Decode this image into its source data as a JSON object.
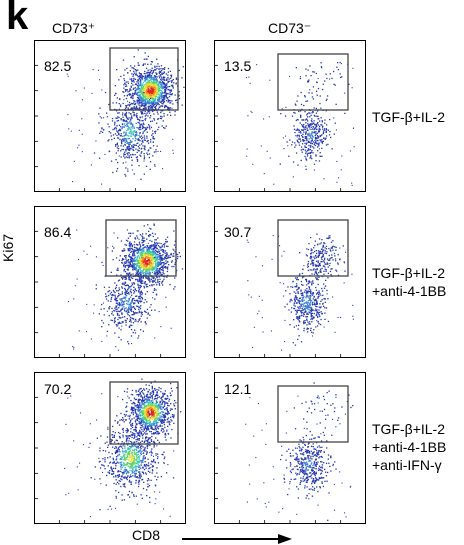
{
  "panel_letter": "k",
  "columns": [
    "CD73⁺",
    "CD73⁻"
  ],
  "y_axis_label": "Ki67",
  "x_axis_label": "CD8",
  "conditions": [
    [
      "TGF-β+IL-2"
    ],
    [
      "TGF-β+IL-2",
      "+anti-4-1BB"
    ],
    [
      "TGF-β+IL-2",
      "+anti-4-1BB",
      "+anti-IFN-γ"
    ]
  ],
  "colors": {
    "density_low": "#1a2fa8",
    "density_mid": "#2fbf6a",
    "density_high": "#e3241b",
    "gate": "#444444"
  },
  "chart_data": {
    "type": "scatter",
    "subtype": "flow-cytometry-density",
    "x_label": "CD8",
    "y_label": "Ki67",
    "columns": [
      "CD73⁺",
      "CD73⁻"
    ],
    "rows": [
      "TGF-β+IL-2",
      "TGF-β+IL-2 +anti-4-1BB",
      "TGF-β+IL-2 +anti-4-1BB +anti-IFN-γ"
    ],
    "gate_percentages": [
      [
        82.5,
        13.5
      ],
      [
        86.4,
        30.7
      ],
      [
        70.2,
        12.1
      ]
    ]
  }
}
